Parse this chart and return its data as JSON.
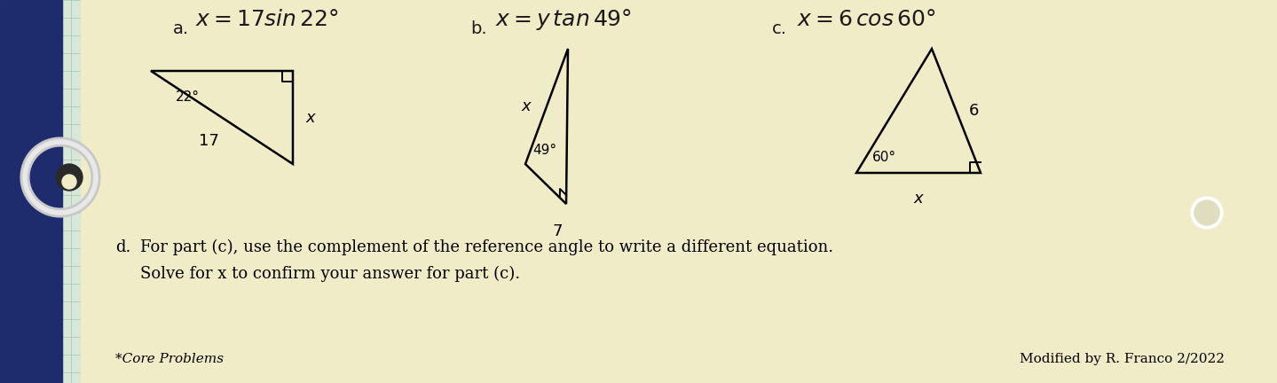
{
  "bg_color": "#f0ecc8",
  "paper_color": "#f0ecc8",
  "left_strip_color": "#b0b8c0",
  "binder_color": "#1a2060",
  "part_d_line1": "d.   For part (c), use the complement of the reference angle to write a different equation.",
  "part_d_line2": "      Solve for x to confirm your answer for part (c).",
  "footer_left": "*Core Problems",
  "footer_right": "Modified by R. Franco 2/2022"
}
